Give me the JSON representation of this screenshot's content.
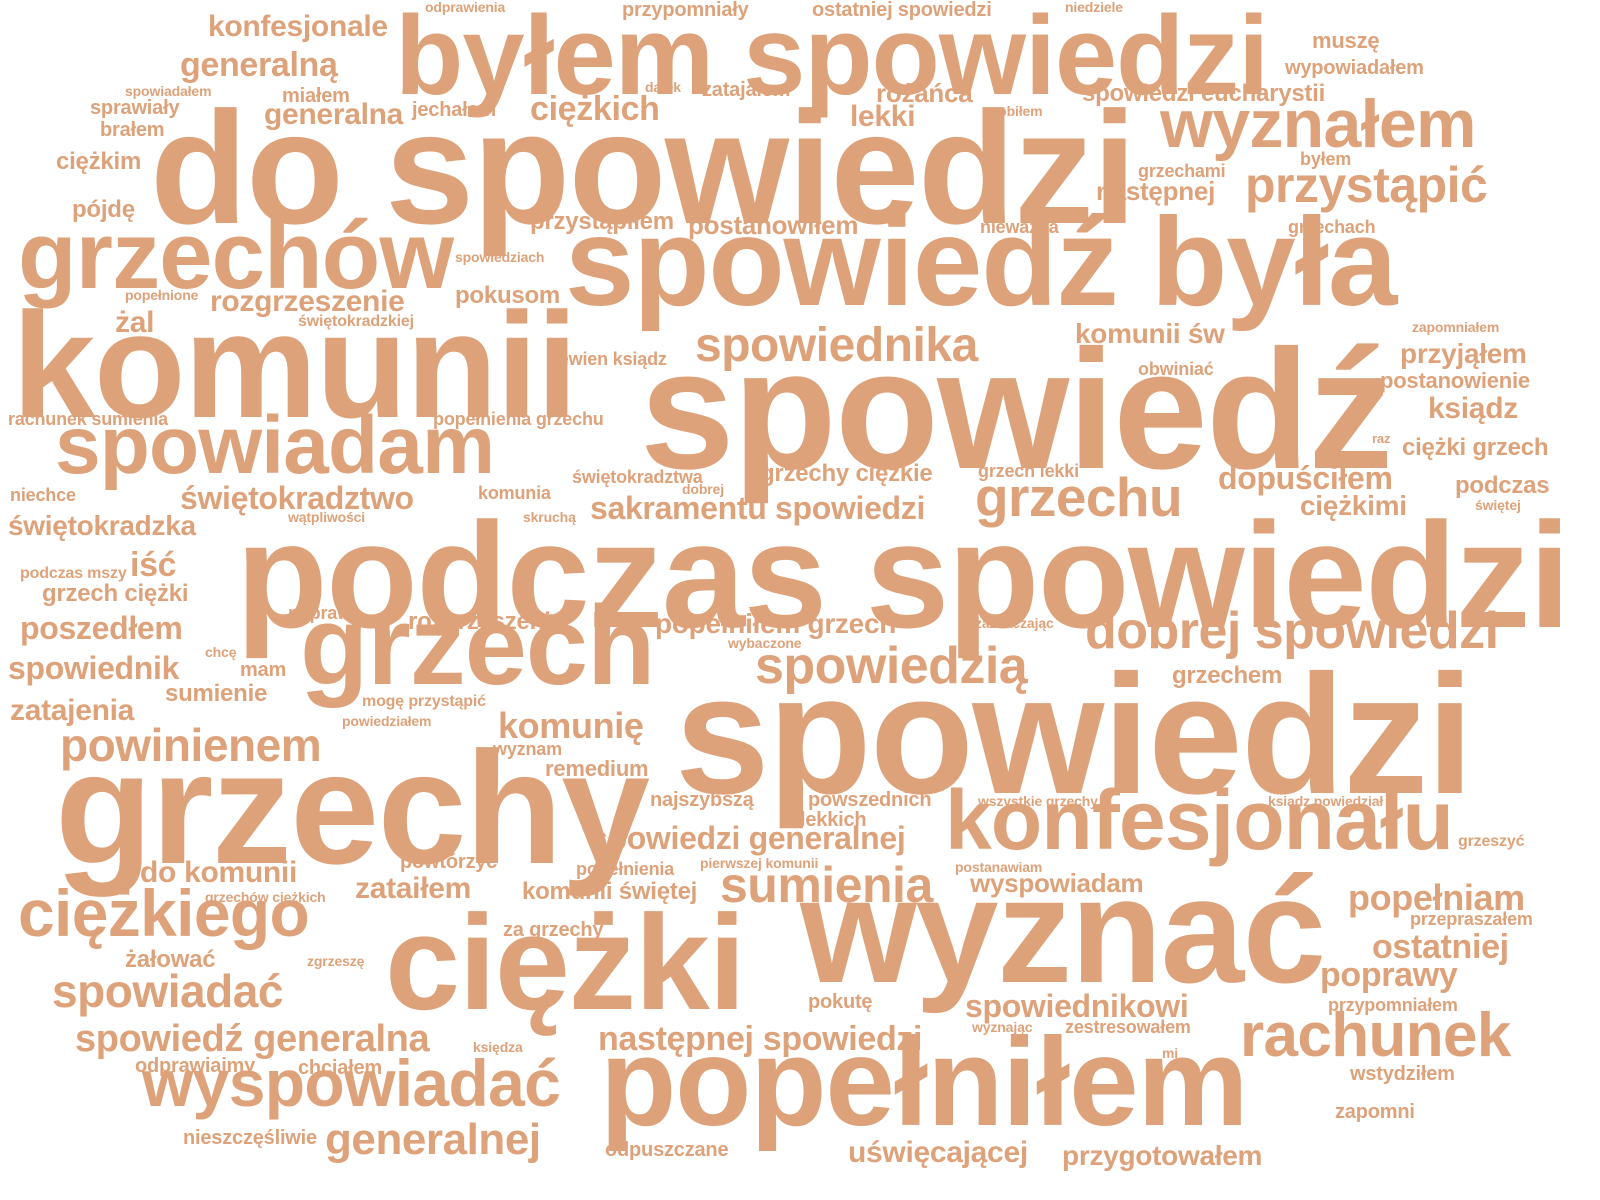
{
  "colors": {
    "word": "#DEA27A",
    "background": "#FFFFFF"
  },
  "words": [
    "spowiedzi",
    "spowiedź",
    "do spowiedzi",
    "podczas spowiedzi",
    "grzechy",
    "komunii",
    "wyznać",
    "spowiedź była",
    "byłem spowiedzi",
    "ciężki",
    "popełniłem",
    "grzech",
    "grzechów",
    "konfesjonału",
    "spowiadam",
    "wyznałem",
    "ciężkiego",
    "wyspowiadać",
    "rachunek",
    "dobrej spowiedzi",
    "przystąpić",
    "spowiedzią",
    "grzechu",
    "sumienia",
    "spowiadać",
    "powinienem",
    "spowiednika",
    "generalnej",
    "spowiedź generalna",
    "następnej spowiedzi",
    "komunię",
    "spowiedzi generalnej",
    "sakramentu spowiedzi",
    "popełniam",
    "ostatniej",
    "poprawy",
    "dopuściłem",
    "spowiednikowi",
    "świętokradztwo",
    "rozgrzeszenie",
    "spowiednik",
    "generalna",
    "generalną",
    "poszedłem",
    "zatajenia",
    "do komunii",
    "zataiłem",
    "konfesjonale",
    "ciężkich",
    "świętokradzka",
    "popełniłem grzech",
    "rozgrzeszenia",
    "uświęcającej",
    "przygotowałem",
    "iść",
    "ciężkimi",
    "komunii św",
    "przyjąłem",
    "ksiądz",
    "ciężki grzech",
    "podczas",
    "postanowiłem",
    "przystąpiłem",
    "lekki",
    "różańca",
    "spowiedzi eucharystii",
    "następnej",
    "grzechy ciężkie",
    "grzech ciężki",
    "żal",
    "pokusom",
    "komunii świętej",
    "wyspowiadam",
    "pójdę",
    "ciężkim",
    "odprawiajmy",
    "chciałem",
    "nieszczęśliwie",
    "odpuszczane",
    "żałować",
    "postanowienie",
    "muszę",
    "wypowiadałem",
    "grzechem",
    "sumienie",
    "mam",
    "remedium",
    "pokutę",
    "za grzechy",
    "zapomni",
    "wstydziłem",
    "ostatniej spowiedzi",
    "przypomniały",
    "zatajałem",
    "miałem",
    "brałem",
    "sprawiały",
    "jechałem",
    "rachunek sumienia",
    "popełnienia grzechu",
    "niechce",
    "komunia",
    "świętokradztwa",
    "grzech lekki",
    "powszednich",
    "lekkich",
    "najszybszą",
    "powtórzyć",
    "popełnienia",
    "przepraszałem",
    "przypomniałem",
    "zestresowałem",
    "pewien ksiądz",
    "obwiniać",
    "grzechami",
    "byłem",
    "nieważna",
    "grzechach",
    "grzeszyć",
    "poprawę",
    "wyznam",
    "odprawienia",
    "niedziele",
    "spowiadałem",
    "datek",
    "zrobiłem",
    "spowiedziach",
    "popełnione",
    "świętokradzkiej",
    "zapomniałem",
    "raz",
    "świętej",
    "dobrej",
    "skruchą",
    "wątpliwości",
    "podczas mszy",
    "chcę",
    "mogę przystąpić",
    "powiedziałem",
    "wybaczone",
    "zaznaczając",
    "wszystkie grzechy",
    "ksiądz powiedział",
    "pierwszej komunii",
    "postanawiam",
    "grzechów ciężkich",
    "zgrzeszę",
    "księdza",
    "wyznając",
    "mi"
  ]
}
